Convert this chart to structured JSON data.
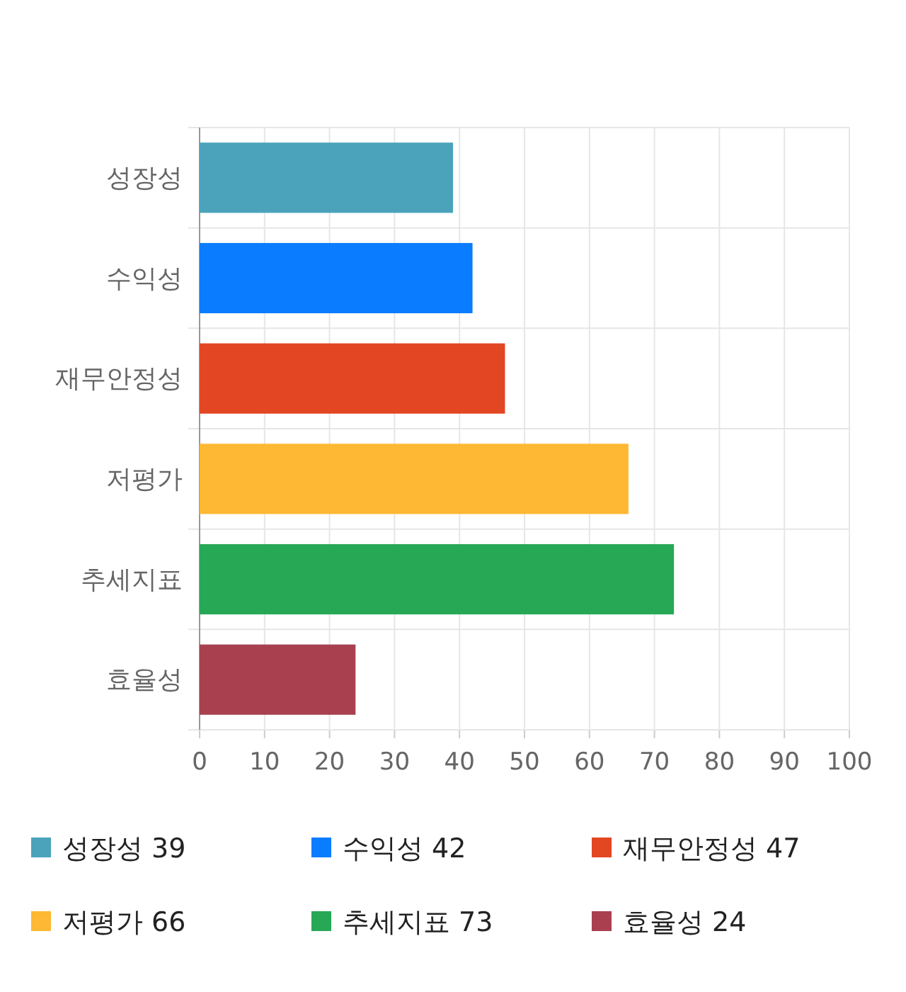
{
  "chart_data": {
    "type": "bar",
    "orientation": "horizontal",
    "categories": [
      "성장성",
      "수익성",
      "재무안정성",
      "저평가",
      "추세지표",
      "효율성"
    ],
    "series": [
      {
        "name": "성장성",
        "color": "#4aa3bb",
        "values": [
          39,
          null,
          null,
          null,
          null,
          null
        ]
      },
      {
        "name": "수익성",
        "color": "#0a7cff",
        "values": [
          null,
          42,
          null,
          null,
          null,
          null
        ]
      },
      {
        "name": "재무안정성",
        "color": "#e34623",
        "values": [
          null,
          null,
          47,
          null,
          null,
          null
        ]
      },
      {
        "name": "저평가",
        "color": "#ffb833",
        "values": [
          null,
          null,
          null,
          66,
          null,
          null
        ]
      },
      {
        "name": "추세지표",
        "color": "#27a855",
        "values": [
          null,
          null,
          null,
          null,
          73,
          null
        ]
      },
      {
        "name": "효율성",
        "color": "#a8404f",
        "values": [
          null,
          null,
          null,
          null,
          null,
          24
        ]
      }
    ],
    "annotations": [
      "39",
      "42",
      "47",
      "66",
      "73",
      "24"
    ],
    "xlim": [
      0,
      100
    ],
    "xticks": [
      0,
      10,
      20,
      30,
      40,
      50,
      60,
      70,
      80,
      90,
      100
    ],
    "grid": true,
    "legend": "bottom"
  }
}
